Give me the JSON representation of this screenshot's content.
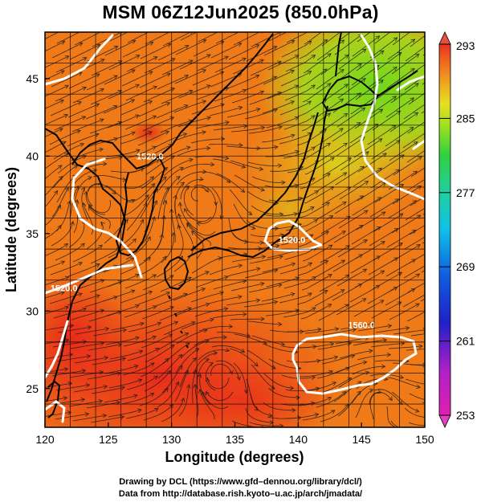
{
  "title": "MSM 06Z12Jun2025 (850.0hPa)",
  "chart_data": {
    "type": "heatmap",
    "title": "MSM 06Z12Jun2025 (850.0hPa)",
    "xlabel": "Longitude (degrees)",
    "ylabel": "Latitude  (degrees)",
    "xlim": [
      120,
      150
    ],
    "ylim": [
      22.5,
      48
    ],
    "xticks": [
      {
        "value": 120,
        "label": "120"
      },
      {
        "value": 125,
        "label": "125"
      },
      {
        "value": 130,
        "label": "130"
      },
      {
        "value": 135,
        "label": "135"
      },
      {
        "value": 140,
        "label": "140"
      },
      {
        "value": 145,
        "label": "145"
      },
      {
        "value": 150,
        "label": "150"
      }
    ],
    "yticks": [
      {
        "value": 25,
        "label": "25"
      },
      {
        "value": 30,
        "label": "30"
      },
      {
        "value": 35,
        "label": "35"
      },
      {
        "value": 40,
        "label": "40"
      },
      {
        "value": 45,
        "label": "45"
      }
    ],
    "grid": true,
    "colorbar": {
      "min": 253,
      "max": 293,
      "labels": [
        {
          "value": 293,
          "label": "293"
        },
        {
          "value": 285,
          "label": "285"
        },
        {
          "value": 277,
          "label": "277"
        },
        {
          "value": 269,
          "label": "269"
        },
        {
          "value": 261,
          "label": "261"
        },
        {
          "value": 253,
          "label": "253"
        }
      ],
      "placement": "right"
    },
    "contour_labels": [
      {
        "lon": 128.3,
        "lat": 40.0,
        "label": "1520.0"
      },
      {
        "lon": 139.5,
        "lat": 34.6,
        "label": "1520.0"
      },
      {
        "lon": 121.5,
        "lat": 31.5,
        "label": "1520.0"
      },
      {
        "lon": 145.0,
        "lat": 29.1,
        "label": "1560.0"
      }
    ],
    "overlays": [
      "temperature shading",
      "geopotential height contours",
      "wind streamlines",
      "coastlines"
    ]
  },
  "credits": {
    "line1": "Drawing by DCL (https://www.gfd–dennou.org/library/dcl/)",
    "line2": "Data from http://database.rish.kyoto–u.ac.jp/arch/jmadata/"
  },
  "colors": {
    "warm": "#e8351a",
    "mid": "#f07a16",
    "cool": "#8ee21a",
    "contour": "#ffffff",
    "coast": "#000000"
  }
}
